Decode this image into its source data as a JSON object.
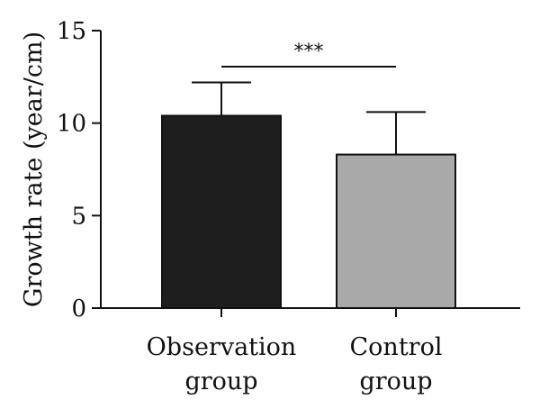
{
  "chart_data": {
    "type": "bar",
    "title": "",
    "ylabel": "Growth rate (year/cm)",
    "xlabel": "",
    "ylim": [
      0,
      15
    ],
    "yticks": [
      0,
      5,
      10,
      15
    ],
    "categories": [
      [
        "Observation",
        "group"
      ],
      [
        "Control",
        "group"
      ]
    ],
    "values": [
      10.4,
      8.3
    ],
    "error_upper": [
      12.2,
      10.6
    ],
    "bar_colors": [
      "#1e1e1e",
      "#a9a9a9"
    ],
    "significance": {
      "text": "***",
      "between": [
        0,
        1
      ]
    }
  }
}
